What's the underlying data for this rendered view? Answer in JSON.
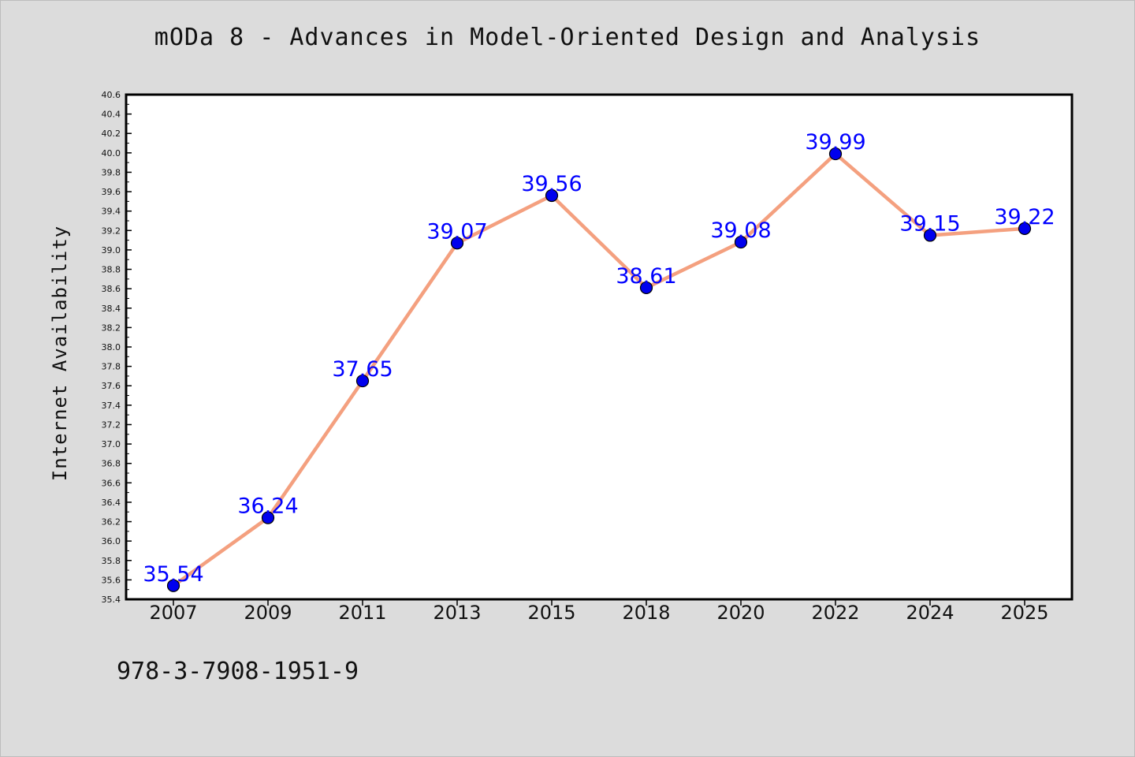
{
  "header": {
    "title": "mODa 8 - Advances in Model-Oriented Design and Analysis"
  },
  "footer": {
    "code": "978-3-7908-1951-9"
  },
  "colors": {
    "line": "#f4a07f",
    "marker": "#0000ee",
    "label": "#0000ff",
    "plot_bg": "#ffffff",
    "page_bg": "#dcdcdc"
  },
  "chart_data": {
    "type": "line",
    "title": "mODa 8 - Advances in Model-Oriented Design and Analysis",
    "xlabel": "",
    "ylabel": "Internet Availability",
    "categories": [
      "2007",
      "2009",
      "2011",
      "2013",
      "2015",
      "2018",
      "2020",
      "2022",
      "2024",
      "2025"
    ],
    "series": [
      {
        "values": [
          35.54,
          36.24,
          37.65,
          39.07,
          39.56,
          38.61,
          39.08,
          39.99,
          39.15,
          39.22
        ],
        "labels": [
          "35.54",
          "36.24",
          "37.65",
          "39.07",
          "39.56",
          "38.61",
          "39.08",
          "39.99",
          "39.15",
          "39.22"
        ]
      }
    ],
    "ylim": [
      35.4,
      40.6
    ],
    "yticks": [
      "35.4",
      "35.6",
      "35.8",
      "36.0",
      "36.2",
      "36.4",
      "36.6",
      "36.8",
      "37.0",
      "37.2",
      "37.4",
      "37.6",
      "37.8",
      "38.0",
      "38.2",
      "38.4",
      "38.6",
      "38.8",
      "39.0",
      "39.2",
      "39.4",
      "39.6",
      "39.8",
      "40.0",
      "40.2",
      "40.4",
      "40.6"
    ],
    "grid": false,
    "legend": "none"
  }
}
